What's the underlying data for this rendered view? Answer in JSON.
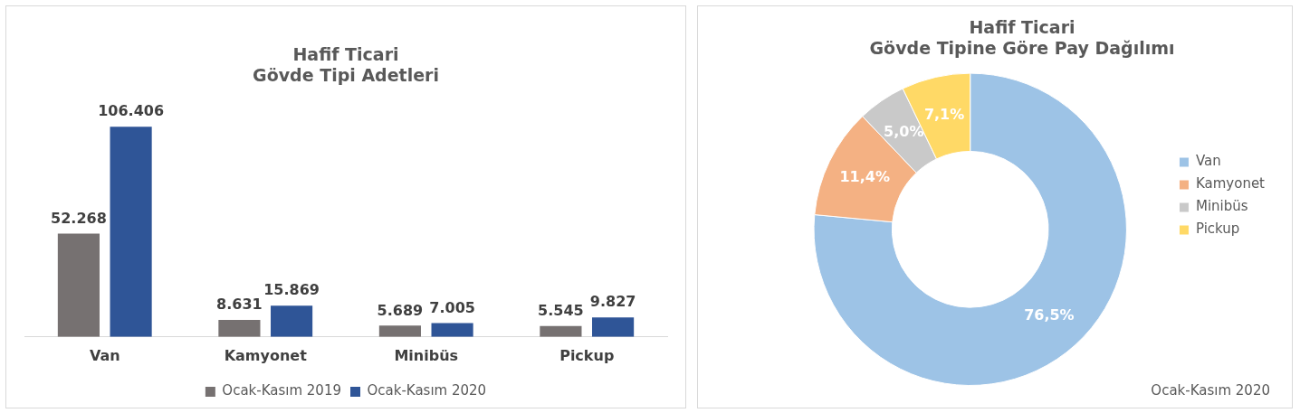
{
  "chart_data": [
    {
      "type": "bar",
      "title": "Hafif Ticari\nGövde Tipi Adetleri",
      "categories": [
        "Van",
        "Kamyonet",
        "Minibüs",
        "Pickup"
      ],
      "series": [
        {
          "name": "Ocak-Kasım 2019",
          "color": "#767171",
          "values": [
            52268,
            8631,
            5689,
            5545
          ],
          "value_labels": [
            "52.268",
            "8.631",
            "5.689",
            "5.545"
          ]
        },
        {
          "name": "Ocak-Kasım 2020",
          "color": "#2f5597",
          "values": [
            106406,
            15869,
            7005,
            9827
          ],
          "value_labels": [
            "106.406",
            "15.869",
            "7.005",
            "9.827"
          ]
        }
      ],
      "legend": "bottom",
      "tick_labels": "x",
      "grid": false
    },
    {
      "type": "donut",
      "title": "Hafif Ticari\nGövde Tipine Göre Pay Dağılımı",
      "categories": [
        "Van",
        "Kamyonet",
        "Minibüs",
        "Pickup"
      ],
      "values": [
        76.5,
        11.4,
        5.0,
        7.1
      ],
      "value_labels": [
        "76,5%",
        "11,4%",
        "5,0%",
        "7,1%"
      ],
      "colors": [
        "#9dc3e6",
        "#f4b183",
        "#c9c9c9",
        "#ffd966"
      ],
      "legend": "right",
      "annotations": [
        "Ocak-Kasım 2020"
      ]
    }
  ]
}
